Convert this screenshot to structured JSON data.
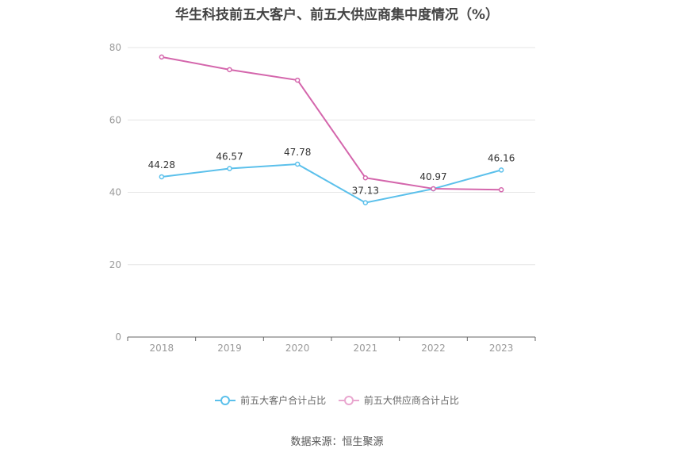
{
  "title": "华生科技前五大客户、前五大供应商集中度情况（%）",
  "source": "数据来源：恒生聚源",
  "chart_data": {
    "type": "line",
    "x": [
      "2018",
      "2019",
      "2020",
      "2021",
      "2022",
      "2023"
    ],
    "ylim": [
      0,
      80
    ],
    "yticks": [
      0,
      20,
      40,
      60,
      80
    ],
    "grid": true,
    "legend_position": "bottom",
    "series": [
      {
        "name": "前五大客户合计占比",
        "color": "#5bc0eb",
        "values": [
          44.28,
          46.57,
          47.78,
          37.13,
          40.97,
          46.16
        ],
        "labels": [
          "44.28",
          "46.57",
          "47.78",
          "37.13",
          "40.97",
          "46.16"
        ]
      },
      {
        "name": "前五大供应商合计占比",
        "color": "#d466ac",
        "values": [
          77.4,
          73.9,
          71.0,
          44.0,
          41.0,
          40.7
        ],
        "labels": []
      }
    ]
  }
}
